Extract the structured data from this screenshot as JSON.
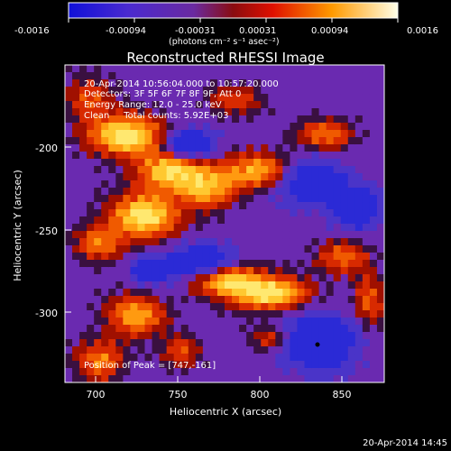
{
  "colorbar": {
    "ticks": [
      "-0.0016",
      "-0.00094",
      "-0.00031",
      "0.00031",
      "0.00094",
      "0.0016"
    ],
    "units": "(photons cm⁻² s⁻¹ asec⁻²)"
  },
  "title": "Reconstructed RHESSI Image",
  "info": {
    "time": "20-Apr-2014 10:56:04.000 to 10:57:20.000",
    "detectors": "Detectors: 3F 5F 6F 7F 8F 9F, Att 0",
    "energy": "Energy Range: 12.0 - 25.0 keV",
    "clean": "Clean     Total counts: 5.92E+03",
    "peak": "Position of Peak = [747,-161]"
  },
  "x_axis": {
    "label": "Heliocentric X (arcsec)",
    "ticks": [
      "700",
      "750",
      "800",
      "850"
    ]
  },
  "y_axis": {
    "label": "Heliocentric Y (arcsec)",
    "ticks": [
      "-200",
      "-250",
      "-300"
    ]
  },
  "footer_date": "20-Apr-2014 14:45"
}
